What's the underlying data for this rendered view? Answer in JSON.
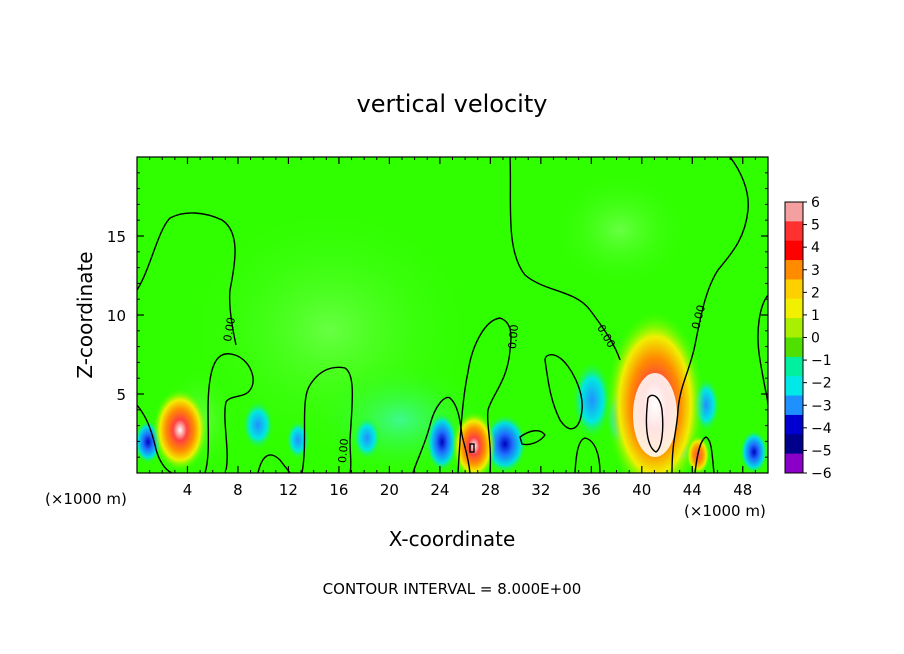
{
  "chart_data": {
    "type": "heatmap",
    "title": "vertical velocity",
    "xlabel": "X-coordinate",
    "ylabel": "Z-coordinate",
    "x_unit": "(×1000 m)",
    "z_unit": "(×1000 m)",
    "xlim": [
      0,
      50
    ],
    "ylim": [
      0,
      20
    ],
    "x_ticks": [
      4,
      8,
      12,
      16,
      20,
      24,
      28,
      32,
      36,
      40,
      44,
      48
    ],
    "y_ticks": [
      5,
      10,
      15
    ],
    "colorbar": {
      "levels": [
        6,
        5,
        4,
        3,
        2,
        1,
        0,
        -1,
        -2,
        -3,
        -4,
        -5,
        -6
      ],
      "colors": [
        "#f4a0a0",
        "#ff3030",
        "#ff0000",
        "#ff8c00",
        "#ffd000",
        "#f0f000",
        "#a8f000",
        "#50e000",
        "#00f0a0",
        "#00e8e8",
        "#1e90ff",
        "#0000d0",
        "#00008b",
        "#8a00c8"
      ]
    },
    "contour_labels": [
      "0.00",
      "0.00",
      "0.00",
      "0.00",
      "0.00"
    ],
    "features": [
      {
        "x": 3.5,
        "z": 2.8,
        "w": 6.5,
        "note": "updraft"
      },
      {
        "x": 26.7,
        "z": 1.7,
        "w": 7.5,
        "note": "updraft"
      },
      {
        "x": 41.0,
        "z": 3.5,
        "w": 8.5,
        "note": "strong updraft"
      },
      {
        "x": 44.5,
        "z": 1.3,
        "w": 3.5,
        "note": "updraft"
      },
      {
        "x": 24.5,
        "z": 2.0,
        "w": -4.5,
        "note": "downdraft"
      },
      {
        "x": 29.5,
        "z": 2.0,
        "w": -4.8,
        "note": "downdraft"
      },
      {
        "x": 36.5,
        "z": 4.5,
        "w": -2.8,
        "note": "downdraft"
      },
      {
        "x": 48.5,
        "z": 1.0,
        "w": -4.0,
        "note": "downdraft"
      },
      {
        "x": 9.5,
        "z": 3.0,
        "w": -2.0,
        "note": "downdraft"
      }
    ]
  },
  "footer": {
    "contour_interval": "CONTOUR INTERVAL =  8.000E+00"
  }
}
